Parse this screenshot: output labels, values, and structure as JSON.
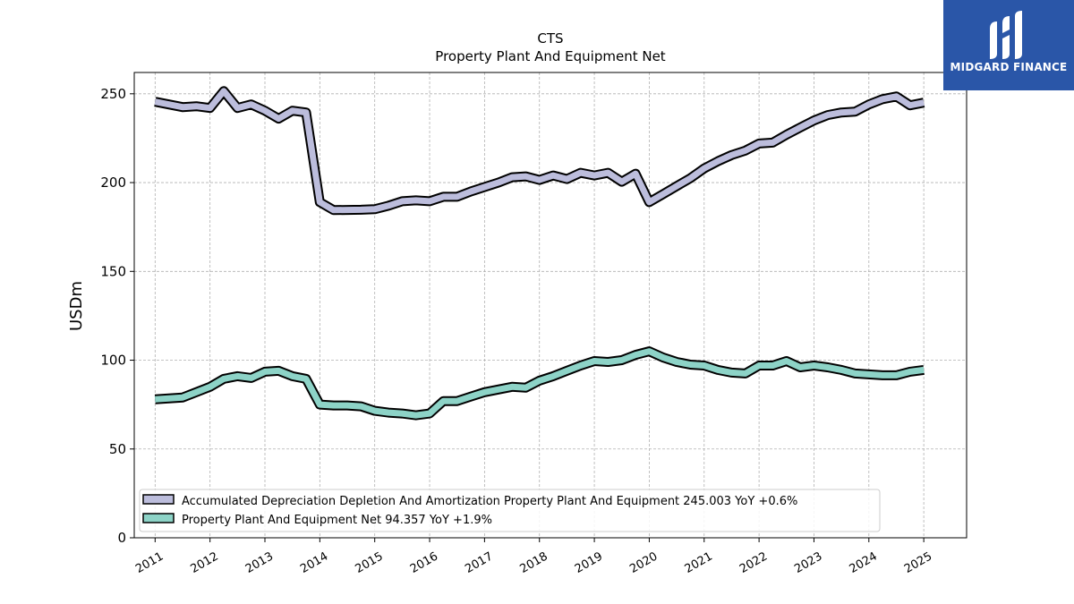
{
  "colors": {
    "accumulated": "#bcbddc",
    "ppe": "#8dd3c7",
    "outline": "#000000",
    "grid": "#b0b0b0",
    "logo_bg": "#2a56a8"
  },
  "logo": {
    "text": "MIDGARD FINANCE",
    "icon": "midgard-logo-icon"
  },
  "chart_data": {
    "type": "line",
    "title": "CTS",
    "subtitle": "Property Plant And Equipment Net",
    "xlabel": "",
    "ylabel": "USDm",
    "xlim": [
      2010.62,
      2025.78
    ],
    "ylim": [
      0,
      262
    ],
    "yticks": [
      0,
      50,
      100,
      150,
      200,
      250
    ],
    "xticks": [
      2011,
      2012,
      2013,
      2014,
      2015,
      2016,
      2017,
      2018,
      2019,
      2020,
      2021,
      2022,
      2023,
      2024,
      2025
    ],
    "grid": true,
    "legend_position": "lower-left",
    "series": [
      {
        "name": "Accumulated Depreciation Depletion And Amortization Property Plant And Equipment",
        "legend_label": "Accumulated Depreciation Depletion And Amortization Property Plant And Equipment  245.003 YoY +0.6%",
        "color_key": "accumulated",
        "x": [
          2011.0,
          2011.25,
          2011.5,
          2011.75,
          2012.0,
          2012.25,
          2012.5,
          2012.75,
          2013.0,
          2013.25,
          2013.5,
          2013.75,
          2014.0,
          2014.25,
          2014.5,
          2014.75,
          2015.0,
          2015.25,
          2015.5,
          2015.75,
          2016.0,
          2016.25,
          2016.5,
          2016.75,
          2017.0,
          2017.25,
          2017.5,
          2017.75,
          2018.0,
          2018.25,
          2018.5,
          2018.75,
          2019.0,
          2019.25,
          2019.5,
          2019.75,
          2020.0,
          2020.25,
          2020.5,
          2020.75,
          2021.0,
          2021.25,
          2021.5,
          2021.75,
          2022.0,
          2022.25,
          2022.5,
          2022.75,
          2023.0,
          2023.25,
          2023.5,
          2023.75,
          2024.0,
          2024.25,
          2024.5,
          2024.75,
          2025.0
        ],
        "values": [
          245.5,
          244.0,
          242.5,
          243.0,
          242.0,
          251.5,
          242.0,
          244.0,
          240.5,
          236.0,
          240.5,
          239.5,
          189.0,
          184.5,
          184.6,
          184.7,
          185.0,
          187.0,
          189.5,
          190.0,
          189.5,
          192.0,
          192.0,
          195.0,
          197.5,
          200.0,
          203.0,
          203.5,
          201.5,
          204.0,
          202.0,
          205.5,
          204.0,
          205.5,
          200.5,
          205.0,
          189.0,
          193.5,
          198.0,
          202.5,
          208.0,
          212.0,
          215.5,
          218.0,
          222.0,
          222.5,
          227.0,
          231.0,
          235.0,
          238.0,
          239.5,
          240.0,
          244.0,
          247.0,
          248.5,
          243.5,
          245.0
        ]
      },
      {
        "name": "Property Plant And Equipment Net",
        "legend_label": "Property Plant And Equipment Net  94.357 YoY +1.9%",
        "color_key": "ppe",
        "x": [
          2011.0,
          2011.25,
          2011.5,
          2011.75,
          2012.0,
          2012.25,
          2012.5,
          2012.75,
          2013.0,
          2013.25,
          2013.5,
          2013.75,
          2014.0,
          2014.25,
          2014.5,
          2014.75,
          2015.0,
          2015.25,
          2015.5,
          2015.75,
          2016.0,
          2016.25,
          2016.5,
          2016.75,
          2017.0,
          2017.25,
          2017.5,
          2017.75,
          2018.0,
          2018.25,
          2018.5,
          2018.75,
          2019.0,
          2019.25,
          2019.5,
          2019.75,
          2020.0,
          2020.25,
          2020.5,
          2020.75,
          2021.0,
          2021.25,
          2021.5,
          2021.75,
          2022.0,
          2022.25,
          2022.5,
          2022.75,
          2023.0,
          2023.25,
          2023.5,
          2023.75,
          2024.0,
          2024.25,
          2024.5,
          2024.75,
          2025.0
        ],
        "values": [
          78.0,
          78.5,
          79.0,
          82.0,
          85.0,
          89.5,
          91.0,
          90.0,
          93.5,
          94.0,
          91.0,
          89.5,
          75.0,
          74.5,
          74.5,
          74.0,
          71.5,
          70.5,
          70.0,
          69.0,
          70.0,
          77.0,
          77.0,
          79.5,
          82.0,
          83.5,
          85.0,
          84.5,
          88.5,
          91.0,
          94.0,
          97.0,
          99.5,
          99.0,
          100.0,
          103.0,
          105.0,
          101.5,
          99.0,
          97.5,
          97.0,
          94.5,
          93.0,
          92.5,
          97.0,
          97.0,
          99.5,
          96.0,
          97.0,
          96.0,
          94.5,
          92.5,
          92.0,
          91.5,
          91.5,
          93.5,
          94.5
        ]
      }
    ]
  }
}
